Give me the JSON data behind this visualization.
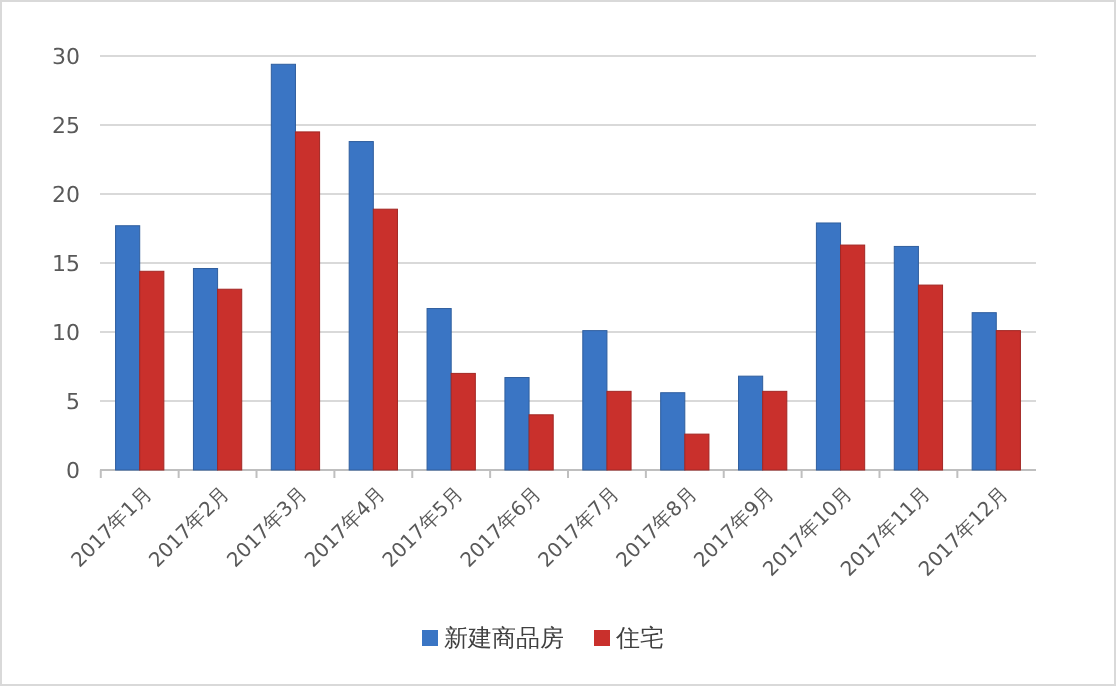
{
  "chart_data": {
    "type": "bar",
    "categories": [
      "2017年1月",
      "2017年2月",
      "2017年3月",
      "2017年4月",
      "2017年5月",
      "2017年6月",
      "2017年7月",
      "2017年8月",
      "2017年9月",
      "2017年10月",
      "2017年11月",
      "2017年12月"
    ],
    "series": [
      {
        "name": "新建商品房",
        "color": "#3a75c4",
        "values": [
          17.7,
          14.6,
          29.4,
          23.8,
          11.7,
          6.7,
          10.1,
          5.6,
          6.8,
          17.9,
          16.2,
          11.4
        ]
      },
      {
        "name": "住宅",
        "color": "#c9302c",
        "values": [
          14.4,
          13.1,
          24.5,
          18.9,
          7.0,
          4.0,
          5.7,
          2.6,
          5.7,
          16.3,
          13.4,
          10.1
        ]
      }
    ],
    "ylim": [
      0,
      30
    ],
    "yticks": [
      0,
      5,
      10,
      15,
      20,
      25,
      30
    ],
    "grid": "y",
    "legend": "bottom"
  }
}
